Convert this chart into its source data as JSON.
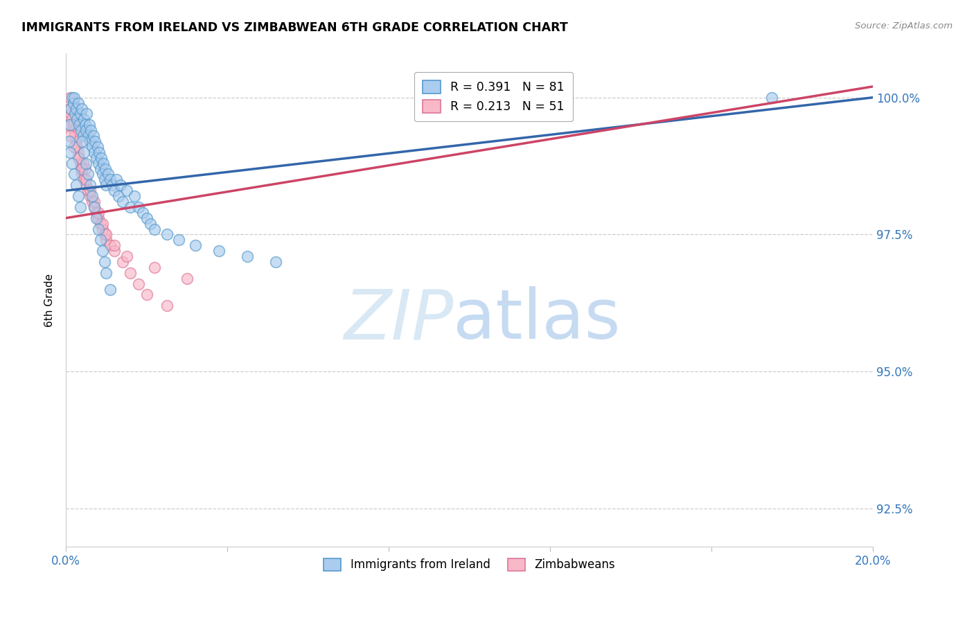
{
  "title": "IMMIGRANTS FROM IRELAND VS ZIMBABWEAN 6TH GRADE CORRELATION CHART",
  "source": "Source: ZipAtlas.com",
  "ylabel": "6th Grade",
  "ylabel_right_ticks": [
    92.5,
    95.0,
    97.5,
    100.0
  ],
  "ylabel_right_labels": [
    "92.5%",
    "95.0%",
    "97.5%",
    "100.0%"
  ],
  "xmin": 0.0,
  "xmax": 20.0,
  "ymin": 91.8,
  "ymax": 100.8,
  "legend_blue_label": "R = 0.391   N = 81",
  "legend_pink_label": "R = 0.213   N = 51",
  "legend_bottom_blue": "Immigrants from Ireland",
  "legend_bottom_pink": "Zimbabweans",
  "blue_color": "#aaccee",
  "pink_color": "#f8b8c8",
  "blue_edge_color": "#5599cc",
  "pink_edge_color": "#dd7799",
  "blue_line_color": "#3366aa",
  "pink_line_color": "#cc4466",
  "background_color": "#ffffff",
  "blue_scatter_x": [
    0.08,
    0.1,
    0.12,
    0.15,
    0.18,
    0.2,
    0.22,
    0.25,
    0.28,
    0.3,
    0.32,
    0.35,
    0.38,
    0.4,
    0.42,
    0.45,
    0.48,
    0.5,
    0.52,
    0.55,
    0.58,
    0.6,
    0.62,
    0.65,
    0.68,
    0.7,
    0.72,
    0.75,
    0.78,
    0.8,
    0.82,
    0.85,
    0.88,
    0.9,
    0.92,
    0.95,
    0.98,
    1.0,
    1.05,
    1.1,
    1.15,
    1.2,
    1.25,
    1.3,
    1.35,
    1.4,
    1.5,
    1.6,
    1.7,
    1.8,
    1.9,
    2.0,
    2.1,
    2.2,
    2.5,
    2.8,
    3.2,
    3.8,
    4.5,
    5.2,
    0.1,
    0.15,
    0.2,
    0.25,
    0.3,
    0.35,
    0.4,
    0.45,
    0.5,
    0.55,
    0.6,
    0.65,
    0.7,
    0.75,
    0.8,
    0.85,
    0.9,
    0.95,
    1.0,
    1.1,
    17.5
  ],
  "blue_scatter_y": [
    99.2,
    99.5,
    99.8,
    100.0,
    99.9,
    100.0,
    99.7,
    99.8,
    99.6,
    99.9,
    99.5,
    99.7,
    99.4,
    99.8,
    99.3,
    99.6,
    99.5,
    99.4,
    99.7,
    99.3,
    99.5,
    99.2,
    99.4,
    99.1,
    99.3,
    99.0,
    99.2,
    98.9,
    99.1,
    98.8,
    99.0,
    98.7,
    98.9,
    98.6,
    98.8,
    98.5,
    98.7,
    98.4,
    98.6,
    98.5,
    98.4,
    98.3,
    98.5,
    98.2,
    98.4,
    98.1,
    98.3,
    98.0,
    98.2,
    98.0,
    97.9,
    97.8,
    97.7,
    97.6,
    97.5,
    97.4,
    97.3,
    97.2,
    97.1,
    97.0,
    99.0,
    98.8,
    98.6,
    98.4,
    98.2,
    98.0,
    99.2,
    99.0,
    98.8,
    98.6,
    98.4,
    98.2,
    98.0,
    97.8,
    97.6,
    97.4,
    97.2,
    97.0,
    96.8,
    96.5,
    100.0
  ],
  "pink_scatter_x": [
    0.05,
    0.08,
    0.1,
    0.12,
    0.15,
    0.18,
    0.2,
    0.22,
    0.25,
    0.28,
    0.3,
    0.32,
    0.35,
    0.38,
    0.4,
    0.42,
    0.45,
    0.48,
    0.5,
    0.55,
    0.6,
    0.65,
    0.7,
    0.75,
    0.8,
    0.85,
    0.9,
    0.95,
    1.0,
    1.1,
    1.2,
    1.4,
    1.6,
    1.8,
    2.0,
    2.5,
    0.1,
    0.2,
    0.3,
    0.4,
    0.5,
    0.6,
    0.7,
    0.8,
    0.9,
    1.0,
    1.2,
    1.5,
    2.2,
    3.0,
    9.5
  ],
  "pink_scatter_y": [
    99.5,
    99.8,
    100.0,
    99.7,
    99.6,
    99.5,
    99.4,
    99.3,
    99.2,
    99.1,
    99.0,
    98.9,
    98.8,
    98.7,
    98.6,
    98.8,
    98.5,
    98.7,
    98.4,
    98.3,
    98.2,
    98.1,
    98.0,
    97.9,
    97.8,
    97.7,
    97.6,
    97.5,
    97.4,
    97.3,
    97.2,
    97.0,
    96.8,
    96.6,
    96.4,
    96.2,
    99.3,
    99.1,
    98.9,
    98.7,
    98.5,
    98.3,
    98.1,
    97.9,
    97.7,
    97.5,
    97.3,
    97.1,
    96.9,
    96.7,
    100.0
  ],
  "blue_trendline_x": [
    0.0,
    20.0
  ],
  "blue_trendline_y": [
    98.3,
    100.0
  ],
  "pink_trendline_x": [
    0.0,
    20.0
  ],
  "pink_trendline_y": [
    97.8,
    100.2
  ]
}
